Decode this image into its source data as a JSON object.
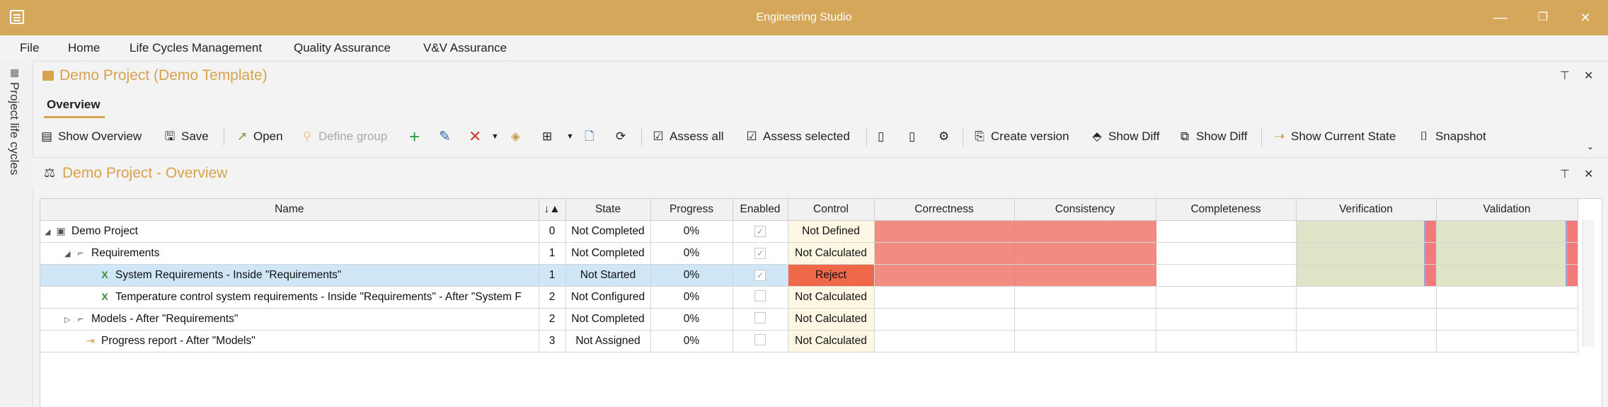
{
  "window": {
    "title": "Engineering Studio",
    "minimize": "—",
    "restore": "❐",
    "close": "✕"
  },
  "menu": [
    "File",
    "Home",
    "Life Cycles Management",
    "Quality Assurance",
    "V&V Assurance"
  ],
  "left_strip": {
    "label": "Project life cycles"
  },
  "project_panel": {
    "title": "Demo Project (Demo Template)",
    "pin": "⊤",
    "close": "✕"
  },
  "ribbon": {
    "tab": "Overview"
  },
  "toolbar": {
    "show_overview": "Show Overview",
    "save": "Save",
    "open": "Open",
    "define_group": "Define group",
    "assess_all": "Assess all",
    "assess_selected": "Assess selected",
    "create_version": "Create version",
    "show_diff_1": "Show Diff",
    "show_diff_2": "Show Diff",
    "show_current_state": "Show Current State",
    "snapshot": "Snapshot"
  },
  "overview_panel": {
    "title": "Demo Project - Overview"
  },
  "grid": {
    "columns": [
      "Name",
      "↓▲",
      "State",
      "Progress",
      "Enabled",
      "Control",
      "Correctness",
      "Consistency",
      "Completeness",
      "Verification",
      "Validation"
    ],
    "rows": [
      {
        "name": "Demo Project",
        "order": "0",
        "state": "Not Completed",
        "progress": "0%",
        "control": "Not Defined"
      },
      {
        "name": "Requirements",
        "order": "1",
        "state": "Not Completed",
        "progress": "0%",
        "control": "Not Calculated"
      },
      {
        "name": "System Requirements - Inside \"Requirements\"",
        "order": "1",
        "state": "Not Started",
        "progress": "0%",
        "control": "Reject"
      },
      {
        "name": "Temperature control system requirements - Inside \"Requirements\" - After \"System F",
        "order": "2",
        "state": "Not Configured",
        "progress": "0%",
        "control": "Not Calculated"
      },
      {
        "name": "Models - After \"Requirements\"",
        "order": "2",
        "state": "Not Completed",
        "progress": "0%",
        "control": "Not Calculated"
      },
      {
        "name": "Progress report - After \"Models\"",
        "order": "3",
        "state": "Not Assigned",
        "progress": "0%",
        "control": "Not Calculated"
      }
    ]
  },
  "colors": {
    "accent": "#d4a75a",
    "reject": "#f0684a",
    "bad": "#f28b80",
    "neutral": "#dfe4c6"
  }
}
